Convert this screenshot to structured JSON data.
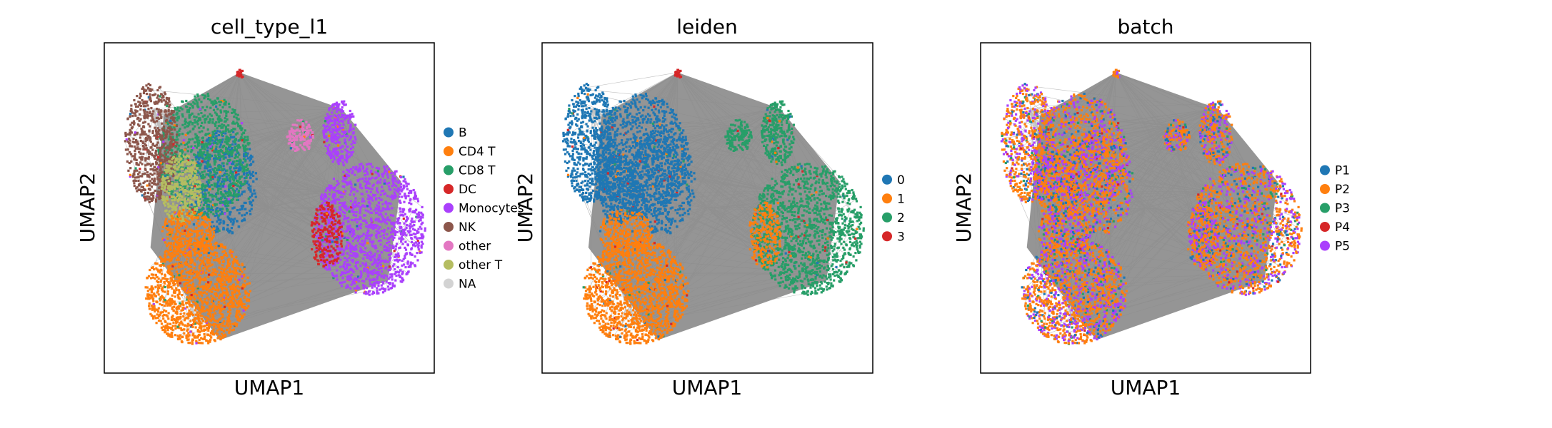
{
  "chart_data": [
    {
      "type": "scatter",
      "title": "cell_type_l1",
      "xlabel": "UMAP1",
      "ylabel": "UMAP2",
      "grid": false,
      "legend_placement": "right",
      "series": [
        {
          "name": "B",
          "color": "#1f77b4"
        },
        {
          "name": "CD4 T",
          "color": "#ff7f0e"
        },
        {
          "name": "CD8 T",
          "color": "#279e68"
        },
        {
          "name": "DC",
          "color": "#d62728"
        },
        {
          "name": "Monocytes",
          "color": "#aa40fc"
        },
        {
          "name": "NK",
          "color": "#8c564b"
        },
        {
          "name": "other",
          "color": "#e377c2"
        },
        {
          "name": "other T",
          "color": "#b5bd61"
        },
        {
          "name": "NA",
          "color": "#d3d3d3"
        }
      ]
    },
    {
      "type": "scatter",
      "title": "leiden",
      "xlabel": "UMAP1",
      "ylabel": "UMAP2",
      "grid": false,
      "legend_placement": "right",
      "series": [
        {
          "name": "0",
          "color": "#1f77b4"
        },
        {
          "name": "1",
          "color": "#ff7f0e"
        },
        {
          "name": "2",
          "color": "#279e68"
        },
        {
          "name": "3",
          "color": "#d62728"
        }
      ]
    },
    {
      "type": "scatter",
      "title": "batch",
      "xlabel": "UMAP1",
      "ylabel": "UMAP2",
      "grid": false,
      "legend_placement": "right",
      "series": [
        {
          "name": "P1",
          "color": "#1f77b4"
        },
        {
          "name": "P2",
          "color": "#ff7f0e"
        },
        {
          "name": "P3",
          "color": "#279e68"
        },
        {
          "name": "P4",
          "color": "#d62728"
        },
        {
          "name": "P5",
          "color": "#aa40fc"
        }
      ]
    }
  ],
  "colors": {
    "edges": "#8c8c8c",
    "frame": "#000000"
  }
}
